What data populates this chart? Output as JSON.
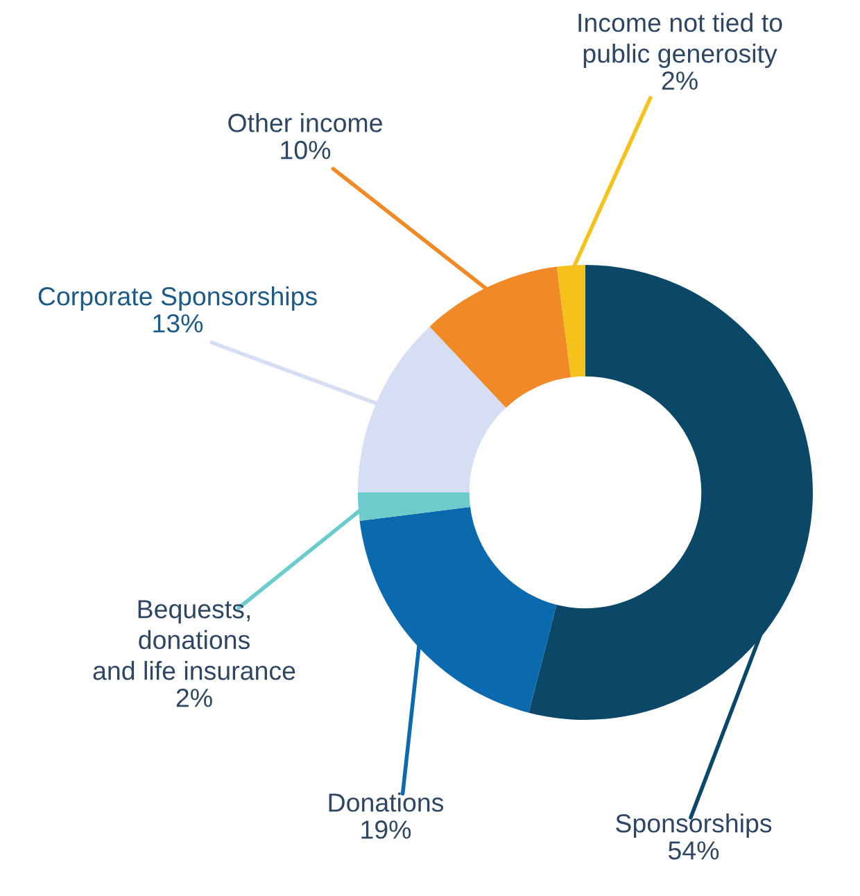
{
  "chart_data": {
    "type": "donut",
    "categories": [
      "Sponsorships",
      "Donations",
      "Bequests,\ndonations\nand life insurance",
      "Corporate Sponsorships",
      "Other income",
      "Income not tied to\npublic generosity"
    ],
    "values": [
      54,
      19,
      2,
      13,
      10,
      2
    ],
    "colors": [
      "#0b4868",
      "#0b6aad",
      "#6ccccc",
      "#d5def3",
      "#ef8a26",
      "#f5c21c"
    ],
    "value_labels": [
      "54%",
      "19%",
      "2%",
      "13%",
      "10%",
      "2%"
    ],
    "legend": false
  }
}
